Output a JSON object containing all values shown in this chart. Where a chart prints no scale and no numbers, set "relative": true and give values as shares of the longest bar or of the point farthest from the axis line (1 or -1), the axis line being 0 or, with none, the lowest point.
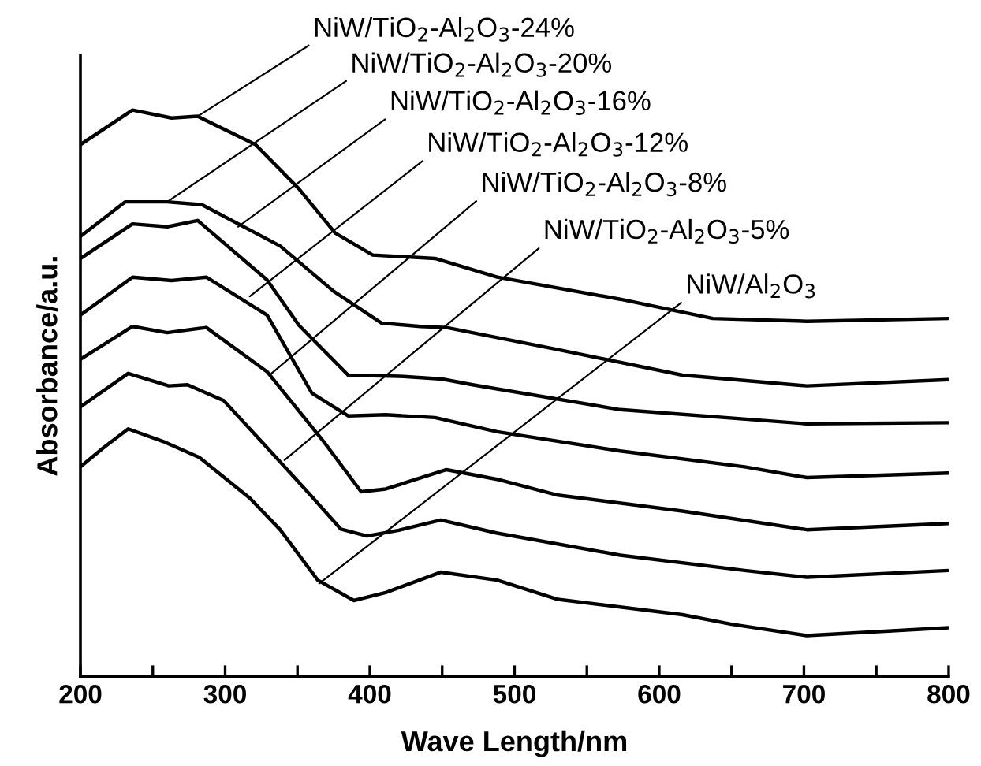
{
  "chart_data": {
    "type": "line",
    "relative": true,
    "xlabel": "Wave Length/nm",
    "ylabel": "Absorbance/a.u.",
    "xlim": [
      200,
      800
    ],
    "xticks": [
      200,
      {
        "value": 250,
        "label": null
      },
      300,
      {
        "value": 350,
        "label": null
      },
      400,
      {
        "value": 450,
        "label": null
      },
      500,
      {
        "value": 550,
        "label": null
      },
      600,
      {
        "value": 650,
        "label": null
      },
      700,
      {
        "value": 750,
        "label": null
      },
      800
    ],
    "grid": false,
    "marker": "none",
    "line_style": "solid",
    "series": [
      {
        "color": "#000000",
        "x": [
          200,
          236,
          263,
          281,
          321,
          351,
          376,
          402,
          445,
          488,
          573,
          637,
          702,
          800
        ],
        "values": [
          0.939,
          1.0,
          0.986,
          0.989,
          0.939,
          0.861,
          0.783,
          0.744,
          0.738,
          0.705,
          0.666,
          0.632,
          0.627,
          0.632
        ]
      },
      {
        "color": "#000000",
        "x": [
          200,
          231,
          260,
          284,
          338,
          375,
          408,
          435,
          453,
          530,
          616,
          702,
          800
        ],
        "values": [
          0.777,
          0.838,
          0.838,
          0.833,
          0.76,
          0.68,
          0.624,
          0.618,
          0.616,
          0.577,
          0.532,
          0.513,
          0.524
        ]
      },
      {
        "color": "#000000",
        "x": [
          200,
          236,
          260,
          281,
          329,
          351,
          385,
          420,
          450,
          471,
          573,
          702,
          800
        ],
        "values": [
          0.738,
          0.799,
          0.794,
          0.805,
          0.7,
          0.62,
          0.532,
          0.53,
          0.525,
          0.515,
          0.471,
          0.446,
          0.448
        ]
      },
      {
        "color": "#000000",
        "x": [
          200,
          236,
          263,
          287,
          329,
          360,
          385,
          411,
          445,
          488,
          573,
          659,
          702,
          800
        ],
        "values": [
          0.638,
          0.705,
          0.699,
          0.705,
          0.638,
          0.5,
          0.46,
          0.462,
          0.457,
          0.432,
          0.398,
          0.37,
          0.351,
          0.359
        ]
      },
      {
        "color": "#000000",
        "x": [
          200,
          236,
          260,
          287,
          329,
          368,
          394,
          411,
          453,
          488,
          530,
          616,
          702,
          800
        ],
        "values": [
          0.56,
          0.618,
          0.607,
          0.616,
          0.538,
          0.415,
          0.326,
          0.331,
          0.365,
          0.348,
          0.32,
          0.292,
          0.259,
          0.27
        ]
      },
      {
        "color": "#000000",
        "x": [
          200,
          233,
          261,
          274,
          299,
          329,
          359,
          380,
          398,
          420,
          449,
          488,
          573,
          659,
          702,
          800
        ],
        "values": [
          0.476,
          0.535,
          0.513,
          0.515,
          0.487,
          0.404,
          0.32,
          0.26,
          0.248,
          0.258,
          0.276,
          0.253,
          0.214,
          0.187,
          0.175,
          0.187
        ]
      },
      {
        "color": "#000000",
        "x": [
          200,
          216,
          233,
          257,
          282,
          317,
          338,
          364,
          389,
          411,
          449,
          488,
          530,
          616,
          650,
          702,
          800
        ],
        "values": [
          0.37,
          0.404,
          0.437,
          0.415,
          0.387,
          0.315,
          0.259,
          0.17,
          0.134,
          0.148,
          0.184,
          0.17,
          0.136,
          0.109,
          0.092,
          0.072,
          0.086
        ]
      }
    ],
    "annotations": [
      {
        "text": "NiW/TiO$_{2}$-Al$_{2}$O$_{3}$-24%",
        "x": 281,
        "y": 0.989
      },
      {
        "text": "NiW/TiO$_{2}$-Al$_{2}$O$_{3}$-20%",
        "x": 260,
        "y": 0.838
      },
      {
        "text": "NiW/TiO$_{2}$-Al$_{2}$O$_{3}$-16%",
        "x": 309,
        "y": 0.794
      },
      {
        "text": "NiW/TiO$_{2}$-Al$_{2}$O$_{3}$-12%",
        "x": 317,
        "y": 0.671
      },
      {
        "text": "NiW/TiO$_{2}$-Al$_{2}$O$_{3}$-8%",
        "x": 332,
        "y": 0.535
      },
      {
        "text": "NiW/TiO$_{2}$-Al$_{2}$O$_{3}$-5%",
        "x": 341,
        "y": 0.382
      },
      {
        "text": "NiW/Al$_{2}$O$_{3}$",
        "x": 365,
        "y": 0.164
      }
    ]
  }
}
